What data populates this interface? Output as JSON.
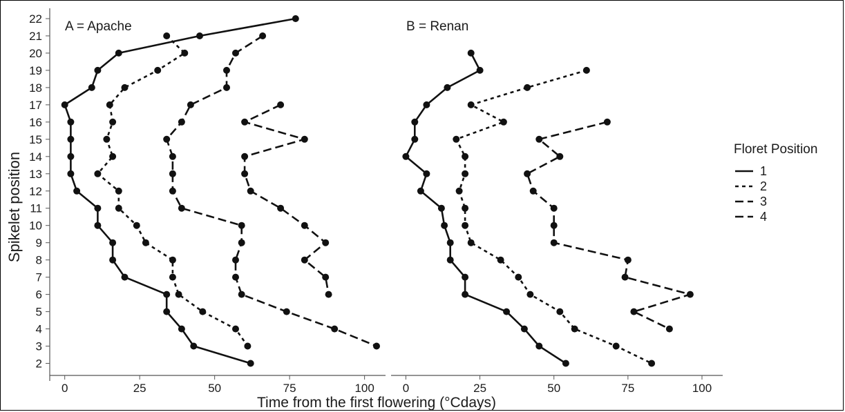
{
  "chart_data": {
    "type": "line",
    "xlabel": "Time from the first flowering (°Cdays)",
    "ylabel": "Spikelet position",
    "y_ticks": [
      2,
      3,
      4,
      5,
      6,
      7,
      8,
      9,
      10,
      11,
      12,
      13,
      14,
      15,
      16,
      17,
      18,
      19,
      20,
      21,
      22
    ],
    "legend": {
      "title": "Floret Position",
      "placement": "right",
      "entries": [
        {
          "label": "1",
          "dash": "solid"
        },
        {
          "label": "2",
          "dash": "short-dash"
        },
        {
          "label": "3",
          "dash": "long-dash"
        },
        {
          "label": "4",
          "dash": "long-dash"
        }
      ]
    },
    "panels": [
      {
        "title": "A = Apache",
        "xlim": [
          -5,
          107
        ],
        "x_ticks": [
          0,
          25,
          50,
          75,
          100
        ],
        "ylim": [
          1.3,
          22.6
        ],
        "series": [
          {
            "name": "1",
            "points": [
              [
                0,
                17
              ],
              [
                2,
                16
              ],
              [
                2,
                15
              ],
              [
                2,
                14
              ],
              [
                2,
                13
              ],
              [
                4,
                12
              ],
              [
                11,
                11
              ],
              [
                11,
                10
              ],
              [
                16,
                9
              ],
              [
                16,
                8
              ],
              [
                20,
                7
              ],
              [
                34,
                6
              ],
              [
                34,
                5
              ],
              [
                39,
                4
              ],
              [
                43,
                3
              ],
              [
                62,
                2
              ],
              [
                9,
                18
              ],
              [
                11,
                19
              ],
              [
                18,
                20
              ],
              [
                45,
                21
              ],
              [
                77,
                22
              ]
            ],
            "order": [
              [
                77,
                22
              ],
              [
                45,
                21
              ],
              [
                18,
                20
              ],
              [
                11,
                19
              ],
              [
                9,
                18
              ],
              [
                0,
                17
              ],
              [
                2,
                16
              ],
              [
                2,
                15
              ],
              [
                2,
                14
              ],
              [
                2,
                13
              ],
              [
                4,
                12
              ],
              [
                11,
                11
              ],
              [
                11,
                10
              ],
              [
                16,
                9
              ],
              [
                16,
                8
              ],
              [
                20,
                7
              ],
              [
                34,
                6
              ],
              [
                34,
                5
              ],
              [
                39,
                4
              ],
              [
                43,
                3
              ],
              [
                62,
                2
              ]
            ]
          },
          {
            "name": "2",
            "points": [
              [
                34,
                21
              ],
              [
                40,
                20
              ],
              [
                31,
                19
              ],
              [
                20,
                18
              ],
              [
                15,
                17
              ],
              [
                16,
                16
              ],
              [
                14,
                15
              ],
              [
                16,
                14
              ],
              [
                11,
                13
              ],
              [
                18,
                12
              ],
              [
                18,
                11
              ],
              [
                24,
                10
              ],
              [
                27,
                9
              ],
              [
                36,
                8
              ],
              [
                36,
                7
              ],
              [
                38,
                6
              ],
              [
                46,
                5
              ],
              [
                57,
                4
              ],
              [
                61,
                3
              ]
            ]
          },
          {
            "name": "3",
            "points": [
              [
                66,
                21
              ],
              [
                57,
                20
              ],
              [
                54,
                19
              ],
              [
                54,
                18
              ],
              [
                42,
                17
              ],
              [
                39,
                16
              ],
              [
                34,
                15
              ],
              [
                36,
                14
              ],
              [
                36,
                13
              ],
              [
                36,
                12
              ],
              [
                39,
                11
              ],
              [
                59,
                10
              ],
              [
                59,
                9
              ],
              [
                57,
                8
              ],
              [
                57,
                7
              ],
              [
                59,
                6
              ],
              [
                74,
                5
              ],
              [
                90,
                4
              ],
              [
                104,
                3
              ]
            ]
          },
          {
            "name": "4",
            "points": [
              [
                72,
                17
              ],
              [
                60,
                16
              ],
              [
                80,
                15
              ],
              [
                60,
                14
              ],
              [
                60,
                13
              ],
              [
                62,
                12
              ],
              [
                72,
                11
              ],
              [
                80,
                10
              ],
              [
                87,
                9
              ],
              [
                80,
                8
              ],
              [
                87,
                7
              ],
              [
                88,
                6
              ]
            ]
          }
        ]
      },
      {
        "title": "B = Renan",
        "xlim": [
          -5,
          107
        ],
        "x_ticks": [
          0,
          25,
          50,
          75,
          100
        ],
        "ylim": [
          1.3,
          22.6
        ],
        "series": [
          {
            "name": "1",
            "points": [
              [
                22,
                20
              ],
              [
                25,
                19
              ],
              [
                14,
                18
              ],
              [
                7,
                17
              ],
              [
                3,
                16
              ],
              [
                3,
                15
              ],
              [
                0,
                14
              ],
              [
                7,
                13
              ],
              [
                5,
                12
              ],
              [
                12,
                11
              ],
              [
                13,
                10
              ],
              [
                15,
                9
              ],
              [
                15,
                8
              ],
              [
                20,
                7
              ],
              [
                20,
                6
              ],
              [
                34,
                5
              ],
              [
                40,
                4
              ],
              [
                45,
                3
              ],
              [
                54,
                2
              ]
            ]
          },
          {
            "name": "2",
            "points": [
              [
                61,
                19
              ],
              [
                41,
                18
              ],
              [
                22,
                17
              ],
              [
                33,
                16
              ],
              [
                17,
                15
              ],
              [
                20,
                14
              ],
              [
                20,
                13
              ],
              [
                18,
                12
              ],
              [
                20,
                11
              ],
              [
                20,
                10
              ],
              [
                22,
                9
              ],
              [
                32,
                8
              ],
              [
                38,
                7
              ],
              [
                42,
                6
              ],
              [
                52,
                5
              ],
              [
                57,
                4
              ],
              [
                71,
                3
              ],
              [
                83,
                2
              ]
            ]
          },
          {
            "name": "3",
            "points": [
              [
                68,
                16
              ],
              [
                45,
                15
              ],
              [
                52,
                14
              ],
              [
                41,
                13
              ],
              [
                43,
                12
              ],
              [
                50,
                11
              ],
              [
                50,
                10
              ],
              [
                50,
                9
              ],
              [
                75,
                8
              ],
              [
                74,
                7
              ],
              [
                96,
                6
              ],
              [
                77,
                5
              ],
              [
                89,
                4
              ]
            ]
          }
        ]
      }
    ]
  }
}
